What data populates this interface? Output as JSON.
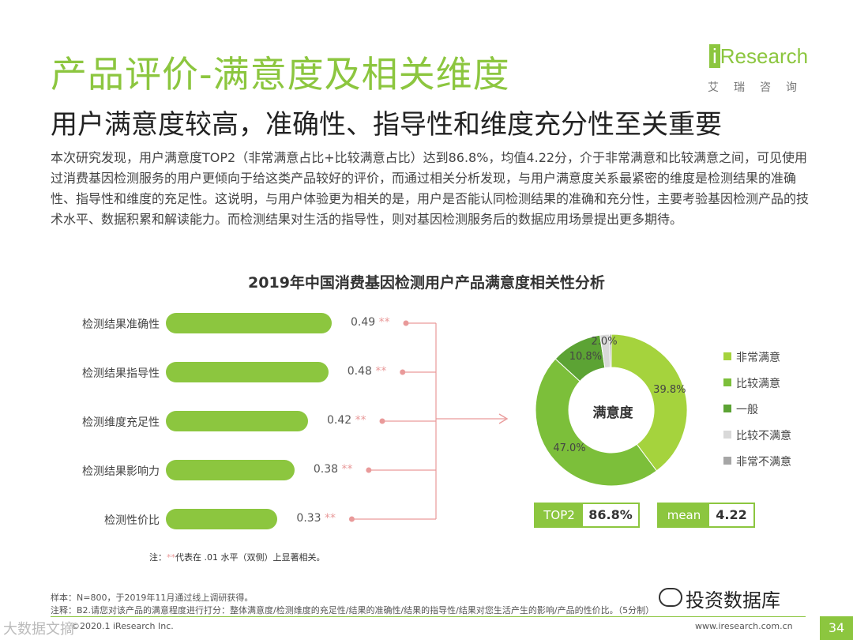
{
  "header": {
    "title": "产品评价-满意度及相关维度",
    "subtitle": "用户满意度较高，准确性、指导性和维度充分性至关重要",
    "body": "本次研究发现，用户满意度TOP2（非常满意占比+比较满意占比）达到86.8%，均值4.22分，介于非常满意和比较满意之间，可见使用过消费基因检测服务的用户更倾向于给这类产品较好的评价，而通过相关分析发现，与用户满意度关系最紧密的维度是检测结果的准确性、指导性和维度的充足性。这说明，与用户体验更为相关的是，用户是否能认同检测结果的准确和充分性，主要考验基因检测产品的技术水平、数据积累和解读能力。而检测结果对生活的指导性，则对基因检测服务后的数据应用场景提出更多期待。"
  },
  "logo": {
    "brand_i": "i",
    "brand_rest": "Research",
    "sub": "艾瑞咨询"
  },
  "chart_data": [
    {
      "type": "bar",
      "orientation": "horizontal",
      "title": "2019年中国消费基因检测用户产品满意度相关性分析",
      "categories": [
        "检测结果准确性",
        "检测结果指导性",
        "检测维度充足性",
        "检测结果影响力",
        "检测性价比"
      ],
      "values": [
        0.49,
        0.48,
        0.42,
        0.38,
        0.33
      ],
      "value_labels": [
        "0.49",
        "0.48",
        "0.42",
        "0.38",
        "0.33"
      ],
      "significance_marker": "**",
      "color": "#8cc63f",
      "xlim": [
        0,
        0.5
      ]
    },
    {
      "type": "pie",
      "donut": true,
      "center_label": "满意度",
      "categories": [
        "非常满意",
        "比较满意",
        "一般",
        "比较不满意",
        "非常不满意"
      ],
      "values": [
        39.8,
        47.0,
        10.8,
        2.0,
        0.4
      ],
      "value_labels": [
        "39.8%",
        "47.0%",
        "10.8%",
        "2.0%",
        ""
      ],
      "colors": [
        "#a5d33d",
        "#7cbf3a",
        "#5ca334",
        "#d9d9d9",
        "#a6a6a6"
      ],
      "legend_position": "right"
    }
  ],
  "kpis": [
    {
      "label": "TOP2",
      "value": "86.8%"
    },
    {
      "label": "mean",
      "value": "4.22"
    }
  ],
  "footnote": {
    "prefix": "注：",
    "marker": "**",
    "text": "代表在 .01 水平（双侧）上显著相关。"
  },
  "footer": {
    "sample": "样本：N=800，于2019年11月通过线上调研获得。",
    "note": "注释：B2.请您对该产品的满意程度进行打分：整体满意度/检测维度的充足性/结果的准确性/结果的指导性/结果对您生活产生的影响/产品的性价比。（5分制）",
    "source": "©2020.1 iResearch Inc.",
    "url": "www.iresearch.com.cn",
    "page": "34",
    "watermark": "投资数据库",
    "watermark2": "大数据文摘"
  }
}
